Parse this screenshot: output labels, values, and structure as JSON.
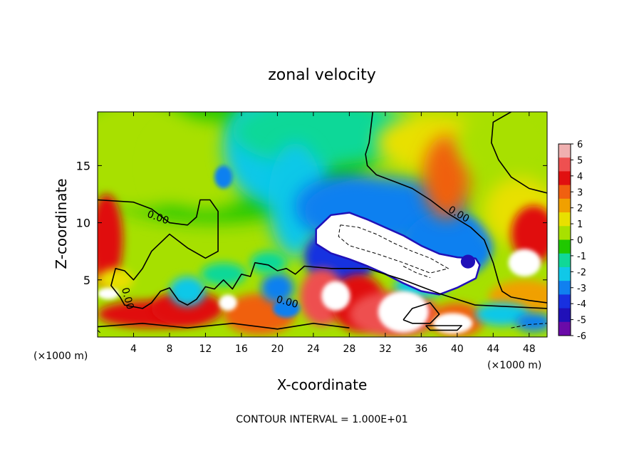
{
  "chart_data": {
    "type": "heatmap",
    "title": "zonal velocity",
    "xlabel": "X-coordinate",
    "ylabel": "Z-coordinate",
    "x_unit_left": "(×1000 m)",
    "x_unit_right": "(×1000 m)",
    "footer": "CONTOUR INTERVAL = 1.000E+01",
    "xlim": [
      0,
      50
    ],
    "ylim": [
      0,
      19.7
    ],
    "x_ticks": [
      4,
      8,
      12,
      16,
      20,
      24,
      28,
      32,
      36,
      40,
      44,
      48
    ],
    "y_ticks": [
      5,
      10,
      15
    ],
    "colorbar": {
      "ticks": [
        6,
        5,
        4,
        3,
        2,
        1,
        0,
        -1,
        -2,
        -3,
        -4,
        -5,
        -6
      ],
      "colors": [
        "#f0b0b0",
        "#ee5050",
        "#e01010",
        "#f06010",
        "#f0a000",
        "#e8e000",
        "#a8e000",
        "#20c800",
        "#10d898",
        "#10c8e8",
        "#1080f0",
        "#1830e0",
        "#2010b8",
        "#6a0aa8"
      ]
    },
    "contour_labels": [
      {
        "text": "0.00",
        "x": 6.6,
        "z": 10.2,
        "angle": 20
      },
      {
        "text": "0.00",
        "x": 3.0,
        "z": 3.3,
        "angle": 75
      },
      {
        "text": "0.00",
        "x": 21.0,
        "z": 2.8,
        "angle": 15
      },
      {
        "text": "0.00",
        "x": 40.0,
        "z": 10.5,
        "angle": 30
      }
    ],
    "contours": {
      "solid": [
        [
          [
            0,
            12
          ],
          [
            4,
            11.8
          ],
          [
            6,
            11.2
          ],
          [
            8,
            10
          ],
          [
            10,
            9.8
          ],
          [
            11,
            10.5
          ],
          [
            11.4,
            12
          ],
          [
            12.5,
            12
          ],
          [
            13.4,
            11
          ],
          [
            13.4,
            7.5
          ],
          [
            12,
            6.9
          ],
          [
            10,
            7.8
          ],
          [
            8,
            9
          ],
          [
            6,
            7.5
          ],
          [
            5,
            6
          ],
          [
            4,
            5
          ],
          [
            3,
            5.8
          ],
          [
            2,
            6
          ],
          [
            1.5,
            4.5
          ],
          [
            2.5,
            3.5
          ],
          [
            3,
            2.8
          ],
          [
            5,
            2.5
          ],
          [
            6,
            3
          ],
          [
            7,
            4
          ],
          [
            8,
            4.3
          ],
          [
            9,
            3.2
          ],
          [
            10,
            2.8
          ],
          [
            11,
            3.3
          ],
          [
            12,
            4.4
          ],
          [
            13,
            4.2
          ],
          [
            14,
            5
          ],
          [
            15,
            4.2
          ],
          [
            16,
            5.5
          ],
          [
            17,
            5.3
          ],
          [
            17.5,
            6.5
          ],
          [
            19,
            6.3
          ],
          [
            20,
            5.8
          ],
          [
            21,
            6
          ],
          [
            22,
            5.5
          ],
          [
            23,
            6.2
          ],
          [
            26,
            6
          ],
          [
            30,
            6
          ],
          [
            34,
            5
          ],
          [
            38,
            3.8
          ],
          [
            42,
            2.8
          ],
          [
            50,
            2.5
          ]
        ],
        [
          [
            30.6,
            19.7
          ],
          [
            30.2,
            17
          ],
          [
            29.8,
            16
          ],
          [
            30,
            15
          ],
          [
            31,
            14.2
          ],
          [
            33,
            13.6
          ],
          [
            35,
            13
          ],
          [
            37,
            12
          ],
          [
            39,
            10.8
          ],
          [
            41.5,
            9.6
          ],
          [
            43,
            8.5
          ],
          [
            44,
            6.5
          ],
          [
            44.6,
            4.8
          ],
          [
            45,
            4
          ],
          [
            46,
            3.5
          ],
          [
            48,
            3.2
          ],
          [
            50,
            3
          ]
        ],
        [
          [
            46,
            19.7
          ],
          [
            44,
            18.8
          ],
          [
            43.8,
            17
          ],
          [
            44.6,
            15.5
          ],
          [
            46,
            14
          ],
          [
            48,
            13
          ],
          [
            50,
            12.6
          ]
        ],
        [
          [
            0,
            0.9
          ],
          [
            5,
            1.2
          ],
          [
            10,
            0.8
          ],
          [
            15,
            1.2
          ],
          [
            20,
            0.7
          ],
          [
            24,
            1.2
          ],
          [
            28,
            0.8
          ]
        ],
        [
          [
            34,
            1.5
          ],
          [
            35,
            2.5
          ],
          [
            37,
            3
          ],
          [
            38,
            2
          ],
          [
            37,
            1.2
          ],
          [
            35,
            1.2
          ],
          [
            34,
            1.5
          ]
        ],
        [
          [
            36.5,
            1
          ],
          [
            37,
            0.6
          ],
          [
            40,
            0.6
          ],
          [
            40.5,
            1
          ],
          [
            36.5,
            1
          ]
        ]
      ],
      "dashed": [
        [
          [
            27,
            9.8
          ],
          [
            29,
            9.6
          ],
          [
            31,
            9
          ],
          [
            33,
            8.2
          ],
          [
            35,
            7.5
          ],
          [
            37,
            6.9
          ],
          [
            39,
            6
          ],
          [
            37,
            5.6
          ],
          [
            34,
            6.5
          ],
          [
            31,
            7.3
          ],
          [
            28,
            8
          ],
          [
            26.8,
            8.8
          ],
          [
            27,
            9.8
          ]
        ],
        [
          [
            34,
            6.2
          ],
          [
            35.5,
            5.6
          ],
          [
            37,
            5.2
          ]
        ],
        [
          [
            0,
            0.6
          ],
          [
            0.4,
            0.3
          ]
        ],
        [
          [
            46,
            0.8
          ],
          [
            48,
            1.1
          ],
          [
            50,
            1.2
          ]
        ]
      ]
    },
    "fields": {
      "background": "#a6e000",
      "regions": [
        {
          "value": "white",
          "shape": "polygon",
          "points": [
            [
              24.4,
              9.4
            ],
            [
              26,
              10.6
            ],
            [
              28,
              10.8
            ],
            [
              30,
              10.2
            ],
            [
              32,
              9.5
            ],
            [
              34,
              8.8
            ],
            [
              36,
              7.9
            ],
            [
              38,
              7.2
            ],
            [
              40,
              6.9
            ],
            [
              42,
              6.8
            ],
            [
              42.4,
              6.3
            ],
            [
              42,
              5.2
            ],
            [
              40,
              4.4
            ],
            [
              38,
              3.8
            ],
            [
              36,
              4.1
            ],
            [
              34,
              4.8
            ],
            [
              32,
              5.6
            ],
            [
              30,
              6.3
            ],
            [
              28,
              6.9
            ],
            [
              26,
              7.4
            ],
            [
              24.4,
              8.2
            ]
          ]
        },
        {
          "value": -6,
          "shape": "ellipse",
          "x": 41.2,
          "z": 6.6,
          "rx": 0.8,
          "rz": 0.6
        }
      ]
    }
  }
}
